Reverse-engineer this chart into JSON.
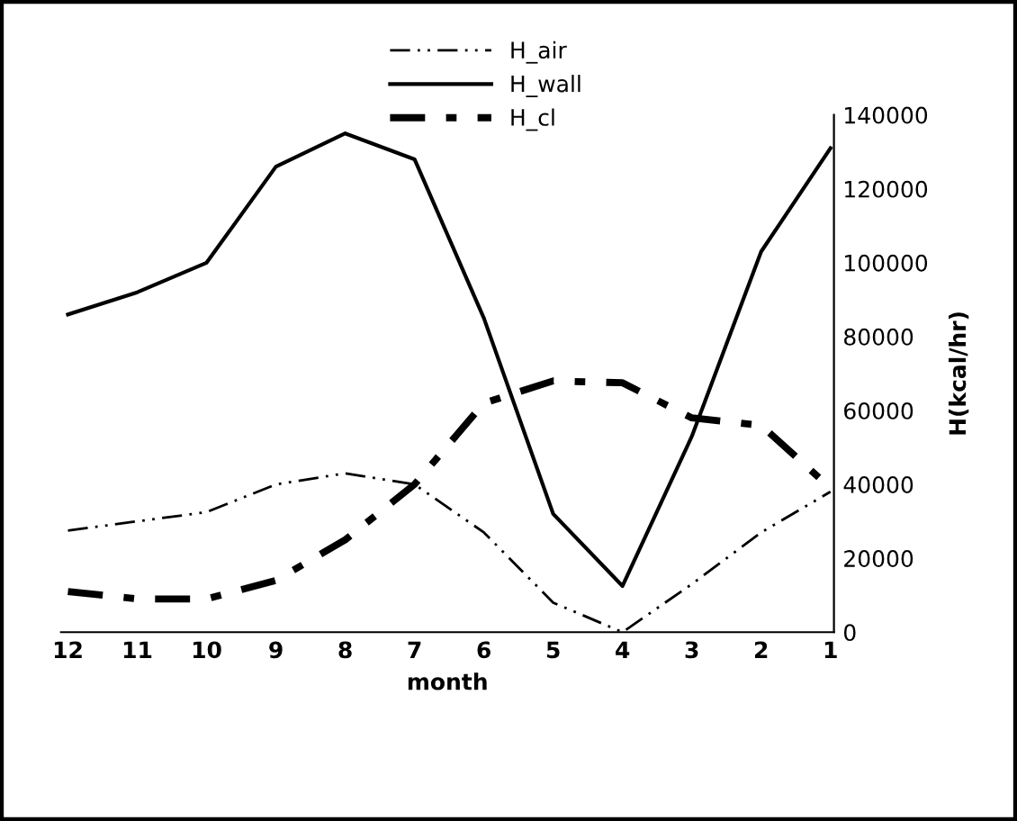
{
  "chart_data": {
    "type": "line",
    "xlabel": "month",
    "ylabel": "H(kcal/hr)",
    "categories": [
      "12",
      "11",
      "10",
      "9",
      "8",
      "7",
      "6",
      "5",
      "4",
      "3",
      "2",
      "1"
    ],
    "series": [
      {
        "name": "H_air",
        "color": "#000000",
        "line_style": "dashdotdot",
        "values": [
          27500,
          30000,
          32500,
          40000,
          43000,
          40000,
          27000,
          8000,
          0,
          13000,
          27000,
          38000
        ]
      },
      {
        "name": "H_wall",
        "color": "#000000",
        "line_style": "solid",
        "values": [
          86000,
          92000,
          100000,
          126000,
          135000,
          128000,
          85000,
          32000,
          12500,
          53000,
          103000,
          131000
        ]
      },
      {
        "name": "H_cl",
        "color": "#000000",
        "line_style": "dashdot",
        "values": [
          11000,
          9000,
          9000,
          14000,
          25000,
          40000,
          62000,
          68000,
          67500,
          58000,
          56000,
          39000
        ]
      }
    ],
    "ylim": [
      0,
      140000
    ],
    "yticks": [
      0,
      20000,
      40000,
      60000,
      80000,
      100000,
      120000,
      140000
    ],
    "grid": false,
    "legend": "top",
    "marker": "none"
  }
}
